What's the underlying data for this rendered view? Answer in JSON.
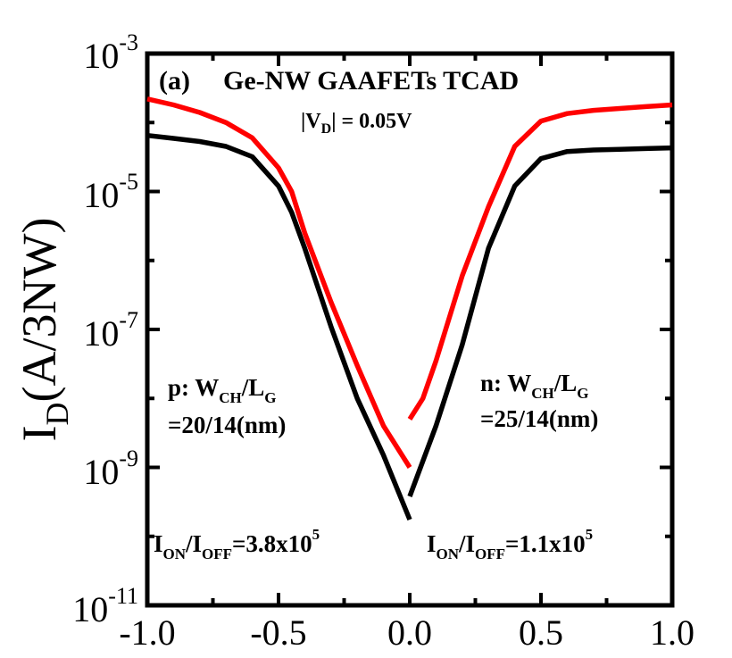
{
  "chart_data": {
    "type": "line",
    "title": "Ge-NW GAAFETs TCAD",
    "panel_label": "(a)",
    "condition": "|V_D| = 0.05V",
    "ylabel": "I_D(A/3NW)",
    "xlabel": "",
    "xlim": [
      -1.0,
      1.0
    ],
    "ylim": [
      1e-11,
      0.001
    ],
    "yscale": "log",
    "x_ticks": [
      "-1.0",
      "-0.5",
      "0.0",
      "0.5",
      "1.0"
    ],
    "y_ticks": [
      {
        "base": "10",
        "exp": "-3"
      },
      {
        "base": "10",
        "exp": "-5"
      },
      {
        "base": "10",
        "exp": "-7"
      },
      {
        "base": "10",
        "exp": "-9"
      },
      {
        "base": "10",
        "exp": "-11"
      }
    ],
    "annotations": {
      "p_device_line1": "p: W_CH/L_G",
      "p_device_line2": "=20/14(nm)",
      "n_device_line1": "n: W_CH/L_G",
      "n_device_line2": "=25/14(nm)",
      "p_ratio": "I_ON/I_OFF=3.8x10^5",
      "n_ratio": "I_ON/I_OFF=1.1x10^5"
    },
    "series": [
      {
        "color": "#ff0000",
        "segments": [
          [
            [
              -1.0,
              0.00022
            ],
            [
              -0.9,
              0.00018
            ],
            [
              -0.8,
              0.00014
            ],
            [
              -0.7,
              0.0001
            ],
            [
              -0.6,
              6e-05
            ],
            [
              -0.5,
              2.2e-05
            ],
            [
              -0.45,
              1e-05
            ],
            [
              -0.4,
              2.5e-06
            ],
            [
              -0.3,
              2.5e-07
            ],
            [
              -0.2,
              3e-08
            ],
            [
              -0.1,
              4e-09
            ],
            [
              0.0,
              1e-09
            ]
          ],
          [
            [
              0.0,
              5e-09
            ],
            [
              0.05,
              1e-08
            ],
            [
              0.1,
              3.5e-08
            ],
            [
              0.2,
              6e-07
            ],
            [
              0.3,
              6e-06
            ],
            [
              0.4,
              4.5e-05
            ],
            [
              0.5,
              0.000105
            ],
            [
              0.6,
              0.000135
            ],
            [
              0.7,
              0.00015
            ],
            [
              0.8,
              0.00016
            ],
            [
              0.9,
              0.00017
            ],
            [
              1.0,
              0.00018
            ]
          ]
        ]
      },
      {
        "color": "#000000",
        "segments": [
          [
            [
              -1.0,
              6.5e-05
            ],
            [
              -0.9,
              5.9e-05
            ],
            [
              -0.8,
              5.3e-05
            ],
            [
              -0.7,
              4.5e-05
            ],
            [
              -0.6,
              3.2e-05
            ],
            [
              -0.5,
              1.2e-05
            ],
            [
              -0.45,
              5e-06
            ],
            [
              -0.4,
              1.5e-06
            ],
            [
              -0.3,
              1.1e-07
            ],
            [
              -0.2,
              1e-08
            ],
            [
              -0.1,
              1.5e-09
            ],
            [
              0.0,
              1.75e-10
            ]
          ],
          [
            [
              0.0,
              3.8e-10
            ],
            [
              0.1,
              4e-09
            ],
            [
              0.2,
              6e-08
            ],
            [
              0.3,
              1.5e-06
            ],
            [
              0.4,
              1.2e-05
            ],
            [
              0.5,
              3e-05
            ],
            [
              0.6,
              3.8e-05
            ],
            [
              0.7,
              4e-05
            ],
            [
              0.8,
              4.1e-05
            ],
            [
              0.9,
              4.2e-05
            ],
            [
              1.0,
              4.3e-05
            ]
          ]
        ]
      }
    ]
  }
}
